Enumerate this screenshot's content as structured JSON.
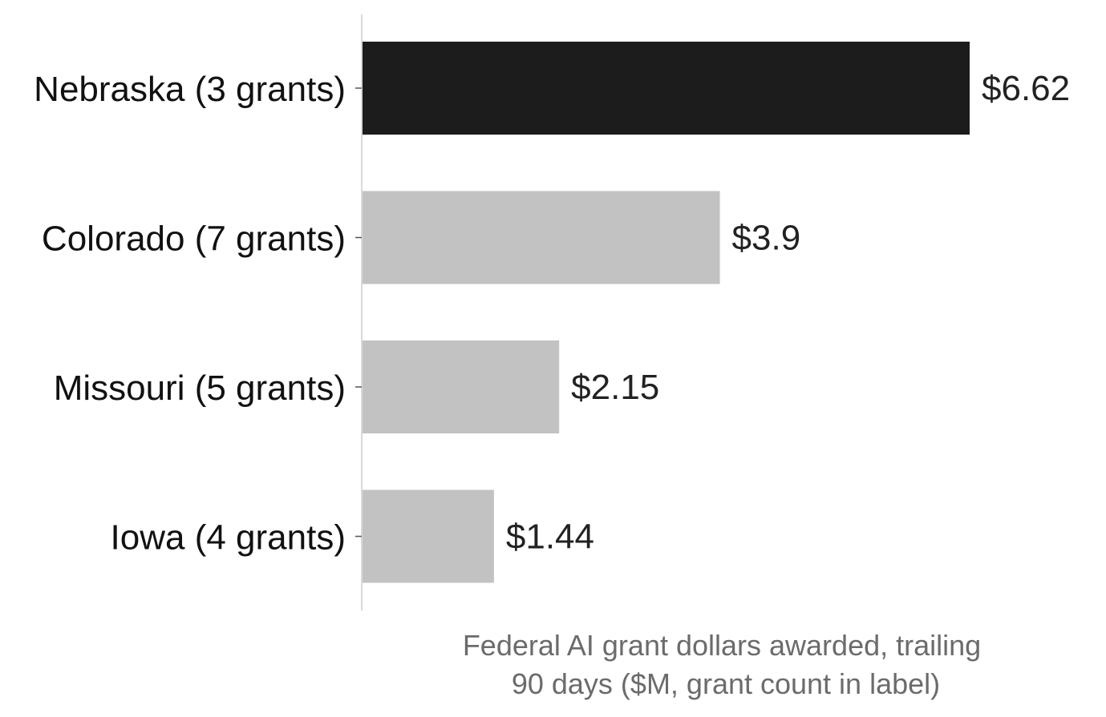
{
  "chart_data": {
    "type": "bar",
    "orientation": "horizontal",
    "categories": [
      "Nebraska (3 grants)",
      "Colorado (7 grants)",
      "Missouri (5 grants)",
      "Iowa (4 grants)"
    ],
    "values": [
      6.62,
      3.9,
      2.15,
      1.44
    ],
    "value_labels": [
      "$6.62",
      "$3.9",
      "$2.15",
      "$1.44"
    ],
    "highlight_index": 0,
    "xlabel_lines": [
      "Federal AI grant dollars awarded, trailing",
      "90 days ($M, grant count in label)"
    ],
    "xlim": [
      0,
      6.62
    ],
    "grid": false,
    "legend": "none",
    "colors": {
      "highlight": "#1c1c1c",
      "bar": "#c2c2c2",
      "axis_line": "#d9d9d9",
      "tick": "#555555",
      "label_text": "#111111",
      "value_text": "#222222",
      "axis_title_text": "#6b6b6b"
    }
  }
}
